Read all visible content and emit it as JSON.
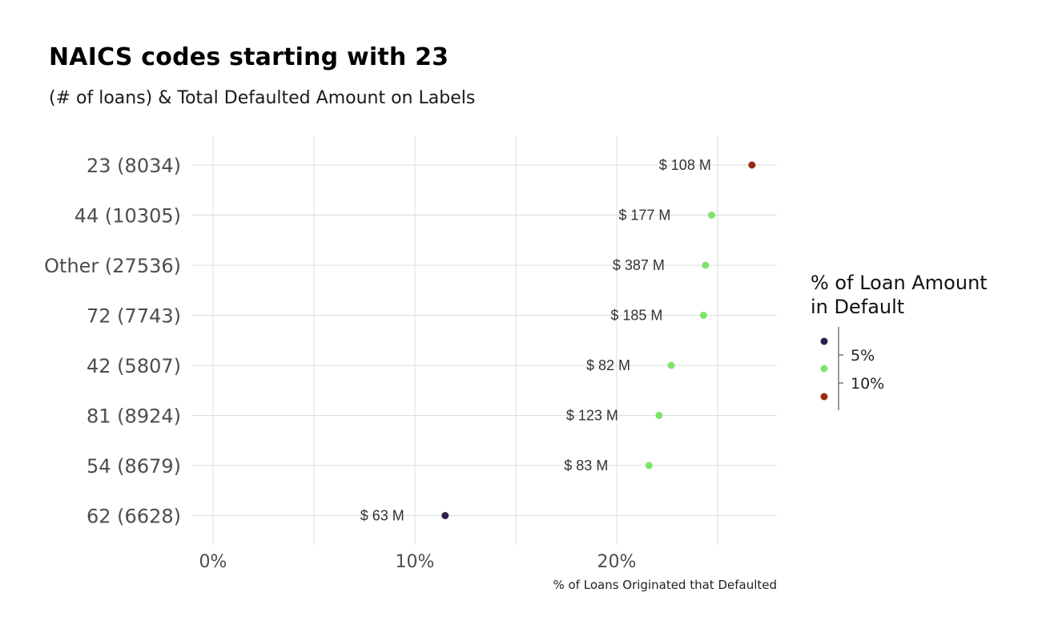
{
  "title": "NAICS codes starting with 23",
  "subtitle": "(# of loans) & Total Defaulted Amount on Labels",
  "chart_data": {
    "type": "scatter",
    "orientation": "dot-plot",
    "categories": [
      "23 (8034)",
      "44 (10305)",
      "Other (27536)",
      "72 (7743)",
      "42 (5807)",
      "81 (8924)",
      "54 (8679)",
      "62 (6628)"
    ],
    "x": [
      26.7,
      24.7,
      24.4,
      24.3,
      22.7,
      22.1,
      21.6,
      11.5
    ],
    "point_labels": [
      "$ 108 M",
      "$ 177 M",
      "$ 387 M",
      "$ 185 M",
      "$ 82 M",
      "$ 123 M",
      "$ 83 M",
      "$ 63 M"
    ],
    "colors": [
      "#9a2a12",
      "#7ee36a",
      "#7ee36a",
      "#7ee36a",
      "#7ee36a",
      "#7ee36a",
      "#7ee36a",
      "#2f1f4e"
    ],
    "xlabel": "% of Loans Originated that Defaulted",
    "xlim": [
      0,
      28
    ],
    "xticks": [
      0,
      10,
      20
    ],
    "xtick_labels": [
      "0%",
      "10%",
      "20%"
    ],
    "grid": true,
    "legend": {
      "title": "% of Loan Amount\nin Default",
      "placement": "right",
      "type": "colorbar",
      "colors": [
        "#2f1f4e",
        "#7ee36a",
        "#9a2a12"
      ],
      "tick_labels": [
        "5%",
        "10%"
      ]
    }
  }
}
